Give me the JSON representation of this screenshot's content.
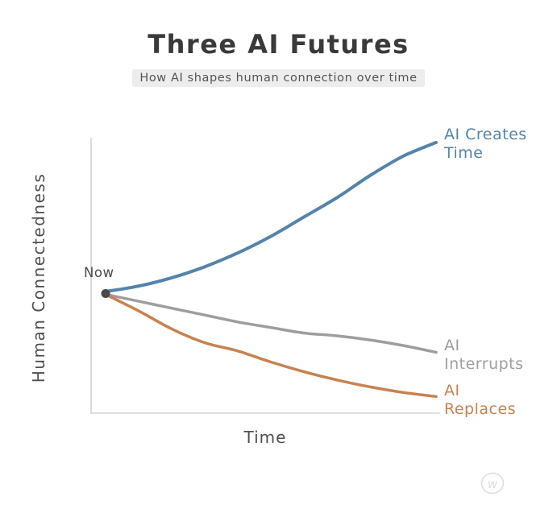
{
  "header": {
    "title": "Three AI Futures",
    "subtitle": "How AI shapes human connection over time",
    "subtitle_bg": "#ededed",
    "title_color": "#3a3a3a"
  },
  "chart_data": {
    "type": "line",
    "title": "Three AI Futures",
    "subtitle": "How AI shapes human connection over time",
    "xlabel": "Time",
    "ylabel": "Human Connectedness",
    "xlim": [
      0,
      10
    ],
    "ylim": [
      0,
      100
    ],
    "grid": false,
    "legend_position": "right-of-line-ends",
    "axis_color": "#d9d9d9",
    "style": "xkcd-hand-drawn",
    "x": [
      0,
      1,
      2,
      3,
      4,
      5,
      6,
      7,
      8,
      9,
      10
    ],
    "series": [
      {
        "name": "AI Creates Time",
        "label_lines": "AI Creates\nTime",
        "color": "#5483ab",
        "width": 4,
        "values": [
          44,
          46,
          49,
          53,
          58,
          64,
          71,
          78,
          86,
          93,
          98
        ]
      },
      {
        "name": "AI Interrupts",
        "label_lines": "AI\nInterrupts",
        "color": "#9e9e9e",
        "width": 3.5,
        "values": [
          43,
          40.5,
          38,
          35.5,
          33,
          31,
          29,
          28,
          26.5,
          24.5,
          22
        ]
      },
      {
        "name": "AI Replaces",
        "label_lines": "AI\nReplaces",
        "color": "#c8824f",
        "width": 3.5,
        "values": [
          43,
          37,
          30.5,
          25.5,
          22.5,
          18.5,
          15,
          12,
          9.5,
          7.5,
          6
        ]
      }
    ],
    "annotations": [
      {
        "text": "Now",
        "x": 0,
        "y": 43.3,
        "marker": "dot",
        "marker_color": "#4a4a4a"
      }
    ]
  },
  "watermark": {
    "letter": "w",
    "color": "#dfdfdf"
  }
}
